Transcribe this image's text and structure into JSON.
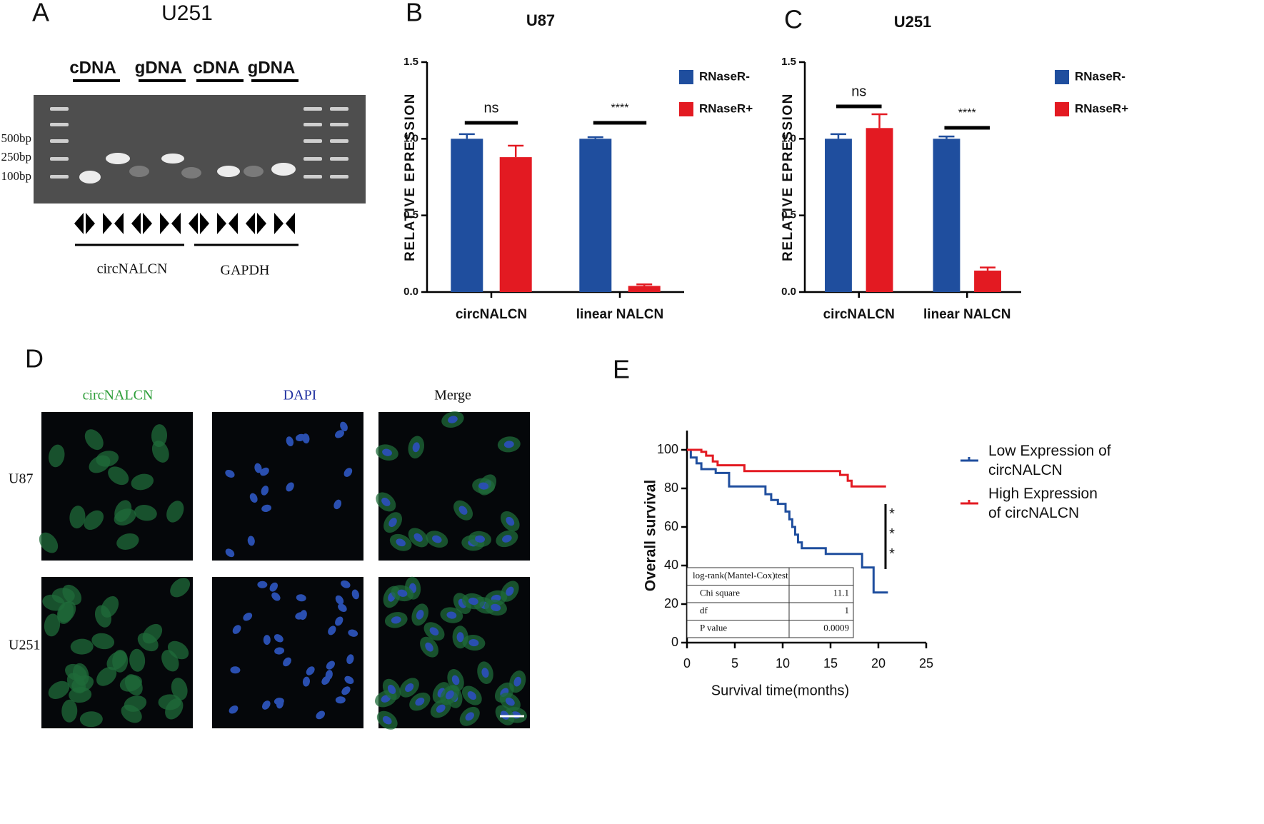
{
  "gel": {
    "panel": "A",
    "title": "U251",
    "lanes": [
      "cDNA",
      "gDNA",
      "cDNA",
      "gDNA"
    ],
    "markers": [
      "500bp",
      "250bp",
      "100bp"
    ],
    "genes": [
      "circNALCN",
      "GAPDH"
    ]
  },
  "microscopy": {
    "panel": "D",
    "columns": [
      "circNALCN",
      "DAPI",
      "Merge"
    ],
    "rows": [
      "U87",
      "U251"
    ]
  },
  "chart_data": [
    {
      "type": "bar",
      "panel": "B",
      "title": "U87",
      "ylabel": "RELATIVE EPRESSION",
      "categories": [
        "circNALCN",
        "linear NALCN"
      ],
      "series": [
        {
          "name": "RNaseR-",
          "color": "#1f4e9e",
          "values": [
            1.0,
            1.0
          ],
          "errors": [
            0.03,
            0.01
          ]
        },
        {
          "name": "RNaseR+",
          "color": "#e31a22",
          "values": [
            0.88,
            0.04
          ],
          "errors": [
            0.075,
            0.01
          ]
        }
      ],
      "annotations": [
        "ns",
        "****"
      ],
      "ylim": [
        0,
        1.5
      ],
      "yticks": [
        {
          "value": 0,
          "label": "0.0"
        },
        {
          "value": 0.5,
          "label": "0.5"
        },
        {
          "value": 1,
          "label": "1.0"
        },
        {
          "value": 1.5,
          "label": "1.5"
        }
      ]
    },
    {
      "type": "bar",
      "panel": "C",
      "title": "U251",
      "ylabel": "RELATIVE EPRESSION",
      "categories": [
        "circNALCN",
        "linear NALCN"
      ],
      "series": [
        {
          "name": "RNaseR-",
          "color": "#1f4e9e",
          "values": [
            1.0,
            1.0
          ],
          "errors": [
            0.03,
            0.015
          ]
        },
        {
          "name": "RNaseR+",
          "color": "#e31a22",
          "values": [
            1.07,
            0.14
          ],
          "errors": [
            0.09,
            0.02
          ]
        }
      ],
      "annotations": [
        "ns",
        "****"
      ],
      "ylim": [
        0,
        1.5
      ],
      "yticks": [
        {
          "value": 0,
          "label": "0.0"
        },
        {
          "value": 0.5,
          "label": "0.5"
        },
        {
          "value": 1,
          "label": "1.0"
        },
        {
          "value": 1.5,
          "label": "1.5"
        }
      ]
    },
    {
      "type": "line",
      "step": true,
      "panel": "E",
      "xlabel": "Survival time(months)",
      "ylabel": "Overall survival",
      "xlim": [
        0,
        25
      ],
      "xticks": [
        0,
        5,
        10,
        15,
        20,
        25
      ],
      "ylim": [
        0,
        110
      ],
      "yticks": [
        0,
        20,
        40,
        60,
        80,
        100
      ],
      "series": [
        {
          "name": "Low Expression of circNALCN",
          "color": "#1f4e9e",
          "x": [
            0,
            0.4,
            1,
            1.5,
            3,
            4.4,
            8.2,
            8.8,
            9.5,
            10.3,
            10.7,
            11,
            11.3,
            11.6,
            12,
            14.5,
            18.3,
            19.5,
            21
          ],
          "values": [
            100,
            96,
            93,
            90,
            88,
            81,
            77,
            74,
            72,
            68,
            64,
            60,
            56,
            52,
            49,
            46,
            39,
            26,
            26
          ]
        },
        {
          "name": "High Expression of circNALCN",
          "color": "#e31a22",
          "x": [
            0,
            1.5,
            2,
            2.7,
            3.2,
            6,
            16,
            16.8,
            17.2,
            20.8
          ],
          "values": [
            100,
            99,
            97,
            94,
            92,
            89,
            87,
            84,
            81,
            81
          ]
        }
      ],
      "annotation": "***",
      "table": {
        "header": "log-rank(Mantel-Cox)test",
        "rows": [
          [
            "Chi square",
            "11.1"
          ],
          [
            "df",
            "1"
          ],
          [
            "P value",
            "0.0009"
          ]
        ]
      }
    }
  ]
}
